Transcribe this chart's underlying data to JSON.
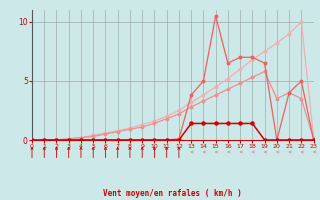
{
  "x": [
    0,
    1,
    2,
    3,
    4,
    5,
    6,
    7,
    8,
    9,
    10,
    11,
    12,
    13,
    14,
    15,
    16,
    17,
    18,
    19,
    20,
    21,
    22,
    23
  ],
  "line_lightest": [
    0,
    0,
    0,
    0.1,
    0.2,
    0.4,
    0.6,
    0.8,
    1.0,
    1.3,
    1.6,
    2.0,
    2.5,
    3.2,
    3.8,
    4.5,
    5.2,
    6.0,
    6.8,
    7.5,
    8.2,
    9.0,
    10.0,
    0.2
  ],
  "line_light": [
    0,
    0,
    0,
    0.1,
    0.2,
    0.3,
    0.5,
    0.7,
    0.9,
    1.1,
    1.4,
    1.8,
    2.2,
    2.8,
    3.3,
    3.8,
    4.3,
    4.8,
    5.3,
    5.8,
    3.5,
    4.0,
    3.5,
    0.1
  ],
  "line_medium": [
    0,
    0,
    0,
    0,
    0,
    0,
    0,
    0,
    0,
    0,
    0,
    0,
    0.1,
    3.8,
    5.0,
    10.5,
    6.5,
    7.0,
    7.0,
    6.5,
    0,
    4.0,
    5.0,
    0
  ],
  "line_dark": [
    0,
    0,
    0,
    0,
    0,
    0,
    0,
    0,
    0,
    0,
    0,
    0,
    0,
    1.4,
    1.4,
    1.4,
    1.4,
    1.4,
    1.4,
    0,
    0,
    0,
    0,
    0
  ],
  "bg_color": "#cce8e8",
  "grid_color": "#999999",
  "color_lightest": "#f0b0b0",
  "color_light": "#ee9090",
  "color_medium": "#ee6060",
  "color_dark": "#cc0000",
  "xlabel": "Vent moyen/en rafales ( km/h )",
  "ylim": [
    0,
    11
  ],
  "xlim": [
    0,
    23
  ],
  "yticks": [
    0,
    5,
    10
  ],
  "xticks": [
    0,
    1,
    2,
    3,
    4,
    5,
    6,
    7,
    8,
    9,
    10,
    11,
    12,
    13,
    14,
    15,
    16,
    17,
    18,
    19,
    20,
    21,
    22,
    23
  ],
  "arrow_up_x": [
    0,
    1,
    2,
    3,
    4,
    5,
    6,
    7,
    8,
    9,
    10,
    11,
    12
  ],
  "arrow_left_x": [
    13,
    14,
    15,
    16,
    17,
    18,
    19,
    20,
    21,
    22,
    23
  ]
}
